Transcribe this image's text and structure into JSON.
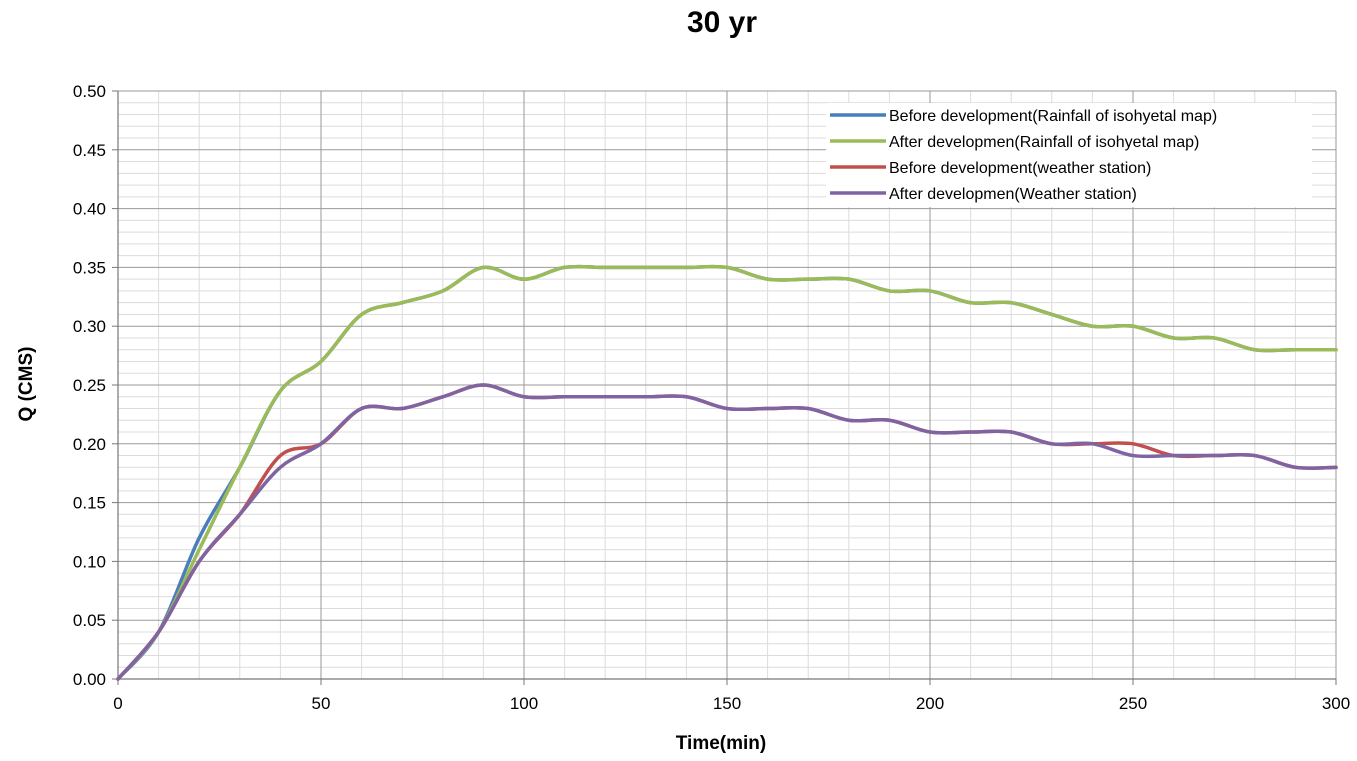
{
  "chart_data": {
    "type": "line",
    "title": "30 yr",
    "xlabel": "Time(min)",
    "ylabel": "Q (CMS)",
    "xlim": [
      0,
      300
    ],
    "ylim": [
      0,
      0.5
    ],
    "x_ticks": [
      0,
      50,
      100,
      150,
      200,
      250,
      300
    ],
    "y_ticks": [
      0,
      0.05,
      0.1,
      0.15,
      0.2,
      0.25,
      0.3,
      0.35,
      0.4,
      0.45,
      0.5
    ],
    "x_tick_labels": [
      "0",
      "50",
      "100",
      "150",
      "200",
      "250",
      "300"
    ],
    "y_tick_labels": [
      "0.00",
      "0.05",
      "0.10",
      "0.15",
      "0.20",
      "0.25",
      "0.30",
      "0.35",
      "0.40",
      "0.45",
      "0.50"
    ],
    "grid": true,
    "legend_position": "top-right",
    "series": [
      {
        "name": "Before development(Rainfall of isohyetal map)",
        "color": "#4a7ebb",
        "x": [
          0,
          10,
          20,
          30,
          40,
          50,
          60,
          70,
          80,
          90,
          100,
          110,
          120,
          130,
          140,
          150,
          160,
          170,
          180,
          190,
          200,
          210,
          220,
          230,
          240,
          250,
          260,
          270,
          280,
          290,
          300
        ],
        "y": [
          0,
          0.04,
          0.12,
          0.18,
          0.245,
          0.27,
          0.31,
          0.32,
          0.33,
          0.35,
          0.34,
          0.35,
          0.35,
          0.35,
          0.35,
          0.35,
          0.34,
          0.34,
          0.34,
          0.33,
          0.33,
          0.32,
          0.32,
          0.31,
          0.3,
          0.3,
          0.29,
          0.29,
          0.28,
          0.28,
          0.28
        ]
      },
      {
        "name": "After developmen(Rainfall of isohyetal map)",
        "color": "#9bbb59",
        "x": [
          0,
          10,
          20,
          30,
          40,
          50,
          60,
          70,
          80,
          90,
          100,
          110,
          120,
          130,
          140,
          150,
          160,
          170,
          180,
          190,
          200,
          210,
          220,
          230,
          240,
          250,
          260,
          270,
          280,
          290,
          300
        ],
        "y": [
          0,
          0.04,
          0.11,
          0.18,
          0.245,
          0.27,
          0.31,
          0.32,
          0.33,
          0.35,
          0.34,
          0.35,
          0.35,
          0.35,
          0.35,
          0.35,
          0.34,
          0.34,
          0.34,
          0.33,
          0.33,
          0.32,
          0.32,
          0.31,
          0.3,
          0.3,
          0.29,
          0.29,
          0.28,
          0.28,
          0.28
        ]
      },
      {
        "name": "Before development(weather station)",
        "color": "#c0504d",
        "x": [
          0,
          10,
          20,
          30,
          40,
          50,
          60,
          70,
          80,
          90,
          100,
          110,
          120,
          130,
          140,
          150,
          160,
          170,
          180,
          190,
          200,
          210,
          220,
          230,
          240,
          250,
          260,
          270,
          280,
          290,
          300
        ],
        "y": [
          0,
          0.04,
          0.1,
          0.14,
          0.19,
          0.2,
          0.23,
          0.23,
          0.24,
          0.25,
          0.24,
          0.24,
          0.24,
          0.24,
          0.24,
          0.23,
          0.23,
          0.23,
          0.22,
          0.22,
          0.21,
          0.21,
          0.21,
          0.2,
          0.2,
          0.2,
          0.19,
          0.19,
          0.19,
          0.18,
          0.18
        ]
      },
      {
        "name": "After developmen(Weather station)",
        "color": "#8064a2",
        "x": [
          0,
          10,
          20,
          30,
          40,
          50,
          60,
          70,
          80,
          90,
          100,
          110,
          120,
          130,
          140,
          150,
          160,
          170,
          180,
          190,
          200,
          210,
          220,
          230,
          240,
          250,
          260,
          270,
          280,
          290,
          300
        ],
        "y": [
          0,
          0.04,
          0.1,
          0.14,
          0.18,
          0.2,
          0.23,
          0.23,
          0.24,
          0.25,
          0.24,
          0.24,
          0.24,
          0.24,
          0.24,
          0.23,
          0.23,
          0.23,
          0.22,
          0.22,
          0.21,
          0.21,
          0.21,
          0.2,
          0.2,
          0.19,
          0.19,
          0.19,
          0.19,
          0.18,
          0.18
        ]
      }
    ]
  }
}
